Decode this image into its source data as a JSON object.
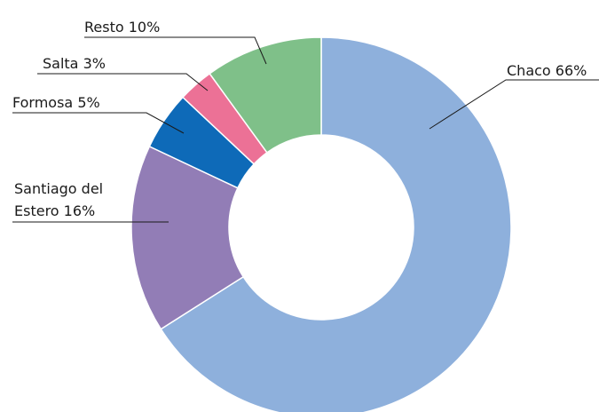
{
  "chart_data": {
    "type": "pie",
    "donut": true,
    "title": "",
    "slices": [
      {
        "label": "Chaco",
        "value": 66,
        "label_text": "Chaco 66%",
        "color": "#8eb0dc"
      },
      {
        "label": "Santiago del Estero",
        "value": 16,
        "label_lines": [
          "Santiago del",
          "Estero 16%"
        ],
        "color": "#927db6"
      },
      {
        "label": "Formosa",
        "value": 5,
        "label_text": "Formosa 5%",
        "color": "#0e6ab8"
      },
      {
        "label": "Salta",
        "value": 3,
        "label_text": "Salta 3%",
        "color": "#ec7196"
      },
      {
        "label": "Resto",
        "value": 10,
        "label_text": "Resto 10%",
        "color": "#7fc089"
      }
    ]
  }
}
